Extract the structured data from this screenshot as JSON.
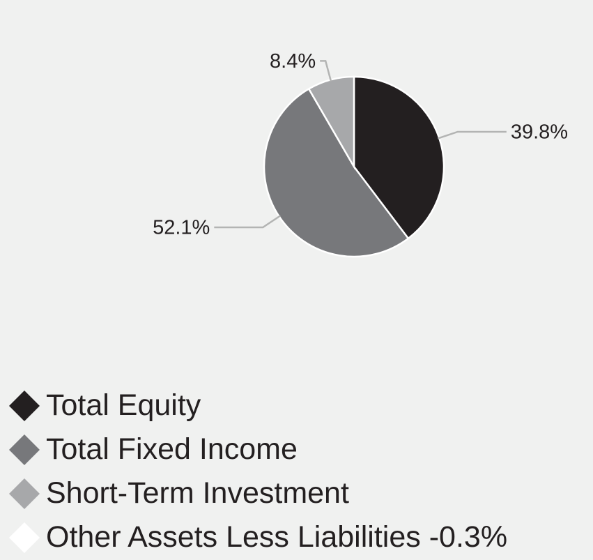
{
  "chart_data": {
    "type": "pie",
    "categories": [
      "Total Equity",
      "Total Fixed Income",
      "Short-Term Investment",
      "Other Assets Less Liabilities"
    ],
    "values": [
      39.8,
      52.1,
      8.4,
      -0.3
    ],
    "value_labels": [
      "39.8%",
      "52.1%",
      "8.4%",
      "-0.3%"
    ],
    "colors": [
      "#231f20",
      "#77787b",
      "#a7a8aa",
      "#ffffff"
    ],
    "legend": "bottom-left"
  }
}
